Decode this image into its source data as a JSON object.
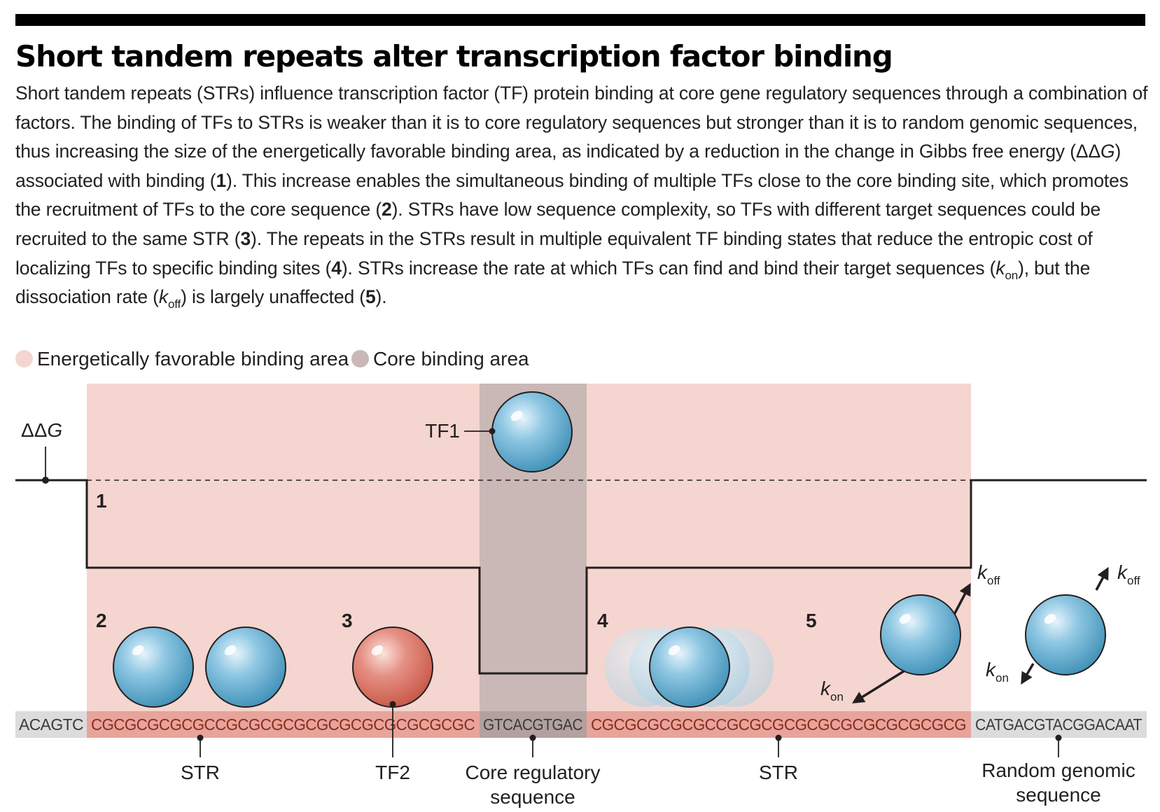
{
  "title": "Short tandem repeats alter transcription factor binding",
  "caption": {
    "p1": "Short tandem repeats (STRs) influence transcription factor (TF) protein binding at core gene regulatory sequences through a combination of factors. The binding of TFs to STRs is weaker than it is to core regulatory sequences but stronger than it is to random genomic sequences, thus increasing the size of the energetically favorable binding area, as indicated by a reduction in the change in Gibbs free energy (",
    "ddg_delta": "ΔΔ",
    "ddg_g": "G",
    "p2": ") associated with binding (",
    "n1": "1",
    "p3": "). This increase enables the simultaneous binding of multiple TFs close to the core binding site, which promotes the recruitment of TFs to the core sequence (",
    "n2": "2",
    "p4": "). STRs have low sequence complexity, so TFs with different target sequences could be recruited to the same STR (",
    "n3": "3",
    "p5": "). The repeats in the STRs result in multiple equivalent TF binding states that reduce the entropic cost of localizing TFs to specific binding sites (",
    "n4": "4",
    "p6": "). STRs increase the rate at which TFs can find and bind their target sequences (",
    "k": "k",
    "on": "on",
    "p7": "), but the dissociation rate (",
    "off": "off",
    "p8": ") is largely unaffected (",
    "n5": "5",
    "p9": ")."
  },
  "legend": {
    "favorable": "Energetically favorable binding area",
    "core": "Core binding area"
  },
  "colors": {
    "favorable_area": "#f5d5cf",
    "core_area": "#c9b8b6",
    "str_band": "#e7a49a",
    "flank_band": "#dcdcdc",
    "core_band": "#b3a19f",
    "tf_blue": "#5ea9cd",
    "tf_red": "#d9685b",
    "line": "#231f20"
  },
  "diagram": {
    "ddg_label_delta": "ΔΔ",
    "ddg_label_g": "G",
    "tf1_label": "TF1",
    "steps": {
      "s1": "1",
      "s2": "2",
      "s3": "3",
      "s4": "4",
      "s5": "5"
    },
    "k": "k",
    "on": "on",
    "off": "off",
    "sequences": {
      "left_flank": "ACAGTC",
      "str_left": "CGCGCGCGCGCCGCGCGCGCGCGCGCGCGCGCGC",
      "core": "GTCACGTGAC",
      "str_right": "CGCGCGCGCGCCGCGCGCGCGCGCGCGCGCGCG",
      "right_flank": "CATGACGTACGGACAAT"
    },
    "bottom_labels": {
      "str_left": "STR",
      "tf2": "TF2",
      "core_line1": "Core regulatory",
      "core_line2": "sequence",
      "str_right": "STR",
      "random_line1": "Random genomic",
      "random_line2": "sequence"
    }
  }
}
